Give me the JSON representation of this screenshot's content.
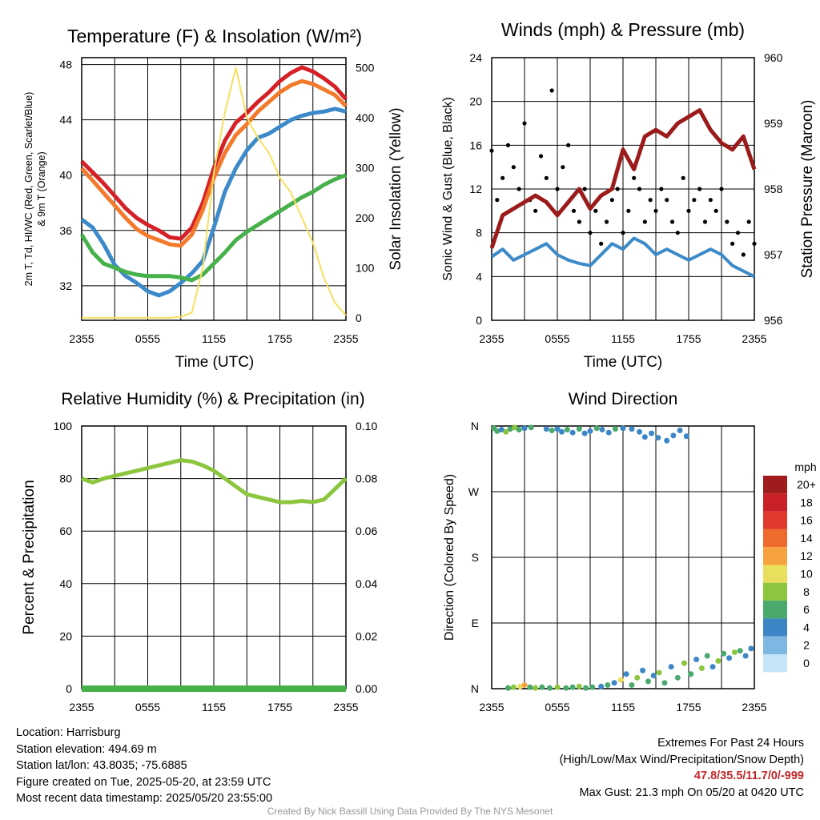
{
  "panels": {
    "temp": {
      "title": "Temperature (F) & Insolation (W/m²)",
      "ylabel_line1": "2m T, Td, HI/WC (Red, Green, Scarlet/Blue)",
      "ylabel_line2": "& 9m T (Orange)",
      "ylabel_right": "Solar Insolation (Yellow)",
      "xlabel": "Time (UTC)"
    },
    "wind": {
      "title": "Winds (mph) & Pressure (mb)",
      "ylabel": "Sonic Wind & Gust (Blue, Black)",
      "ylabel_right": "Station Pressure (Maroon)",
      "xlabel": "Time (UTC)"
    },
    "rh": {
      "title": "Relative Humidity (%) & Precipitation (in)",
      "ylabel": "Percent & Precipitation"
    },
    "dir": {
      "title": "Wind Direction",
      "ylabel": "Direction (Colored By Speed)",
      "colorbar_title": "mph",
      "colorbar_labels": [
        "20+",
        "18",
        "16",
        "14",
        "12",
        "10",
        "8",
        "6",
        "4",
        "2",
        "0"
      ],
      "colorbar_colors": [
        "#a01c1c",
        "#c92126",
        "#e03a2c",
        "#ef6a2d",
        "#f6a23f",
        "#e8df5c",
        "#8cc63f",
        "#4aa96c",
        "#3d86c6",
        "#7fb7e3",
        "#c4e4f7"
      ]
    }
  },
  "x_ticks": [
    "2355",
    "0555",
    "1155",
    "1755",
    "2355"
  ],
  "chart_data": [
    {
      "type": "line",
      "id": "temp",
      "x_ticks": [
        "2355",
        "0555",
        "1155",
        "1755",
        "2355"
      ],
      "ylim": [
        29.5,
        48.5
      ],
      "yticks": [
        32,
        36,
        40,
        44,
        48
      ],
      "y2lim": [
        -5,
        520
      ],
      "y2ticks": [
        0,
        100,
        200,
        300,
        400,
        500
      ],
      "grid": true,
      "series": [
        {
          "name": "2m T",
          "color": "#d42026",
          "axis": "left",
          "x": [
            0,
            1,
            2,
            3,
            4,
            5,
            6,
            7,
            8,
            9,
            10,
            11,
            12,
            13,
            14,
            15,
            16,
            17,
            18,
            19,
            20,
            21,
            22,
            23,
            24
          ],
          "values": [
            41.0,
            40.2,
            39.4,
            38.5,
            37.6,
            36.9,
            36.4,
            36.0,
            35.5,
            35.4,
            36.2,
            38.0,
            40.5,
            42.5,
            43.8,
            44.5,
            45.3,
            46.0,
            46.8,
            47.4,
            47.8,
            47.5,
            47.0,
            46.4,
            45.5
          ]
        },
        {
          "name": "9m T",
          "color": "#f47a2b",
          "axis": "left",
          "x": [
            0,
            1,
            2,
            3,
            4,
            5,
            6,
            7,
            8,
            9,
            10,
            11,
            12,
            13,
            14,
            15,
            16,
            17,
            18,
            19,
            20,
            21,
            22,
            23,
            24
          ],
          "values": [
            40.5,
            39.6,
            38.7,
            37.8,
            36.9,
            36.1,
            35.6,
            35.3,
            35.0,
            34.9,
            35.7,
            37.5,
            39.8,
            41.6,
            42.9,
            43.7,
            44.6,
            45.3,
            46.0,
            46.5,
            46.8,
            46.6,
            46.2,
            45.8,
            45.0
          ]
        },
        {
          "name": "HI/WC",
          "color": "#3c8ac9",
          "axis": "left",
          "x": [
            0,
            1,
            2,
            3,
            4,
            5,
            6,
            7,
            8,
            9,
            10,
            11,
            12,
            13,
            14,
            15,
            16,
            17,
            18,
            19,
            20,
            21,
            22,
            23,
            24
          ],
          "values": [
            36.8,
            36.2,
            35.0,
            33.5,
            32.7,
            32.2,
            31.6,
            31.3,
            31.6,
            32.2,
            32.9,
            33.8,
            36.2,
            38.8,
            40.5,
            41.8,
            42.7,
            43.0,
            43.5,
            44.0,
            44.3,
            44.5,
            44.6,
            44.8,
            44.6
          ]
        },
        {
          "name": "Td",
          "color": "#46b04a",
          "axis": "left",
          "x": [
            0,
            1,
            2,
            3,
            4,
            5,
            6,
            7,
            8,
            9,
            10,
            11,
            12,
            13,
            14,
            15,
            16,
            17,
            18,
            19,
            20,
            21,
            22,
            23,
            24
          ],
          "values": [
            35.7,
            34.4,
            33.6,
            33.3,
            33.0,
            32.8,
            32.7,
            32.7,
            32.7,
            32.6,
            32.4,
            32.8,
            33.6,
            34.4,
            35.3,
            35.9,
            36.4,
            36.9,
            37.4,
            37.9,
            38.4,
            38.8,
            39.3,
            39.7,
            40.0
          ]
        },
        {
          "name": "Solar",
          "color": "#f6e061",
          "axis": "right",
          "x": [
            0,
            1,
            2,
            3,
            4,
            5,
            6,
            7,
            8,
            9,
            10,
            11,
            12,
            13,
            14,
            15,
            16,
            17,
            18,
            19,
            20,
            21,
            22,
            23,
            24
          ],
          "values": [
            0,
            0,
            0,
            0,
            0,
            0,
            0,
            0,
            0,
            2,
            10,
            100,
            290,
            410,
            500,
            400,
            360,
            330,
            280,
            250,
            200,
            150,
            80,
            30,
            5
          ]
        }
      ]
    },
    {
      "type": "line",
      "id": "wind",
      "x_ticks": [
        "2355",
        "0555",
        "1155",
        "1755",
        "2355"
      ],
      "ylim": [
        0,
        24
      ],
      "yticks": [
        0,
        4,
        8,
        12,
        16,
        20,
        24
      ],
      "y2lim": [
        956,
        960
      ],
      "y2ticks": [
        956,
        957,
        958,
        959,
        960
      ],
      "grid": true,
      "series": [
        {
          "name": "Sonic Wind",
          "color": "#3c8ac9",
          "axis": "left",
          "x": [
            0,
            1,
            2,
            3,
            4,
            5,
            6,
            7,
            8,
            9,
            10,
            11,
            12,
            13,
            14,
            15,
            16,
            17,
            18,
            19,
            20,
            21,
            22,
            23,
            24
          ],
          "values": [
            5.8,
            6.5,
            5.5,
            6.0,
            6.5,
            7.0,
            6.0,
            5.5,
            5.2,
            5.0,
            6.0,
            7.0,
            6.5,
            7.5,
            7.0,
            6.0,
            6.5,
            6.0,
            5.5,
            6.0,
            6.5,
            6.0,
            5.0,
            4.5,
            4.0
          ]
        },
        {
          "name": "Gust",
          "color": "#000000",
          "axis": "left",
          "x": [
            0,
            0.5,
            1,
            1.5,
            2,
            2.5,
            3,
            3.5,
            4,
            4.5,
            5,
            5.5,
            6,
            6.5,
            7,
            7.5,
            8,
            8.5,
            9,
            9.5,
            10,
            10.5,
            11,
            11.5,
            12,
            12.5,
            13,
            13.5,
            14,
            14.5,
            15,
            15.5,
            16,
            16.5,
            17,
            17.5,
            18,
            18.5,
            19,
            19.5,
            20,
            20.5,
            21,
            21.5,
            22,
            22.5,
            23,
            23.5,
            24
          ],
          "values": [
            15.5,
            11,
            13,
            16,
            14,
            12,
            18,
            11,
            10,
            15,
            13,
            21,
            12,
            14,
            16,
            10,
            9,
            12,
            8,
            10,
            7,
            9,
            11,
            12,
            8,
            10,
            13,
            12,
            9,
            11,
            10,
            12,
            11,
            9,
            8,
            13,
            10,
            11,
            12,
            9,
            11,
            10,
            12,
            9,
            7,
            8,
            6,
            9,
            7
          ]
        },
        {
          "name": "Pressure",
          "color": "#9b1b1b",
          "axis": "right",
          "x": [
            0,
            1,
            2,
            3,
            4,
            5,
            6,
            7,
            8,
            9,
            10,
            11,
            12,
            13,
            14,
            15,
            16,
            17,
            18,
            19,
            20,
            21,
            22,
            23,
            24
          ],
          "values": [
            957.1,
            957.6,
            957.7,
            957.8,
            957.9,
            957.8,
            957.6,
            957.8,
            958.0,
            957.7,
            957.9,
            958.0,
            958.6,
            958.3,
            958.8,
            958.9,
            958.8,
            959.0,
            959.1,
            959.2,
            958.9,
            958.7,
            958.6,
            958.8,
            958.3
          ]
        }
      ]
    },
    {
      "type": "line",
      "id": "rh",
      "x_ticks": [
        "2355",
        "0555",
        "1155",
        "1755",
        "2355"
      ],
      "ylim": [
        0,
        100
      ],
      "yticks": [
        0,
        20,
        40,
        60,
        80,
        100
      ],
      "y2lim": [
        0,
        0.1
      ],
      "y2ticks": [
        "0.00",
        "0.02",
        "0.04",
        "0.06",
        "0.08",
        "0.10"
      ],
      "grid": true,
      "series": [
        {
          "name": "RH",
          "color": "#8cc63f",
          "axis": "left",
          "x": [
            0,
            1,
            2,
            3,
            4,
            5,
            6,
            7,
            8,
            9,
            10,
            11,
            12,
            13,
            14,
            15,
            16,
            17,
            18,
            19,
            20,
            21,
            22,
            23,
            24
          ],
          "values": [
            80,
            78.5,
            80,
            81,
            82,
            83,
            84,
            85,
            86,
            87,
            86.5,
            85,
            83,
            80,
            77,
            74,
            73,
            72,
            71,
            71,
            71.5,
            71,
            72,
            76,
            80
          ]
        },
        {
          "name": "Precip",
          "color": "#46b04a",
          "axis": "right",
          "x": [
            0,
            24
          ],
          "values": [
            0,
            0
          ]
        }
      ]
    },
    {
      "type": "scatter",
      "id": "dir",
      "x_ticks": [
        "2355",
        "0555",
        "1155",
        "1755",
        "2355"
      ],
      "ylim": [
        0,
        360
      ],
      "yticks": [
        "N",
        "E",
        "S",
        "W",
        "N"
      ],
      "grid": true,
      "points_north_high": [
        [
          0.2,
          357,
          6
        ],
        [
          0.5,
          353,
          6
        ],
        [
          0.9,
          355,
          4
        ],
        [
          1.3,
          352,
          8
        ],
        [
          1.7,
          356,
          6
        ],
        [
          2.1,
          358,
          8
        ],
        [
          2.5,
          355,
          6
        ],
        [
          3.0,
          357,
          4
        ],
        [
          3.6,
          358,
          6
        ],
        [
          5.0,
          356,
          4
        ],
        [
          5.5,
          354,
          6
        ],
        [
          6.0,
          356,
          4
        ],
        [
          6.4,
          352,
          4
        ],
        [
          6.9,
          355,
          6
        ],
        [
          7.4,
          351,
          4
        ],
        [
          8.0,
          356,
          6
        ],
        [
          8.5,
          350,
          4
        ],
        [
          9.0,
          353,
          4
        ],
        [
          9.6,
          357,
          6
        ],
        [
          10.1,
          355,
          4
        ],
        [
          10.7,
          351,
          4
        ],
        [
          11.3,
          356,
          6
        ],
        [
          12.0,
          357,
          4
        ],
        [
          12.8,
          356,
          4
        ],
        [
          13.5,
          352,
          4
        ],
        [
          14.0,
          345,
          4
        ],
        [
          14.6,
          350,
          4
        ],
        [
          15.2,
          344,
          4
        ],
        [
          16.0,
          340,
          4
        ],
        [
          16.6,
          347,
          4
        ],
        [
          17.2,
          354,
          4
        ],
        [
          17.8,
          346,
          4
        ]
      ],
      "points_north_low": [
        [
          1.5,
          1,
          6
        ],
        [
          2.0,
          2,
          8
        ],
        [
          2.6,
          3,
          10
        ],
        [
          3.0,
          5,
          12
        ],
        [
          3.5,
          2,
          6
        ],
        [
          4.0,
          1,
          8
        ],
        [
          4.6,
          2,
          6
        ],
        [
          5.3,
          1,
          6
        ],
        [
          6.0,
          2,
          8
        ],
        [
          6.8,
          1,
          6
        ],
        [
          7.4,
          2,
          6
        ],
        [
          8.0,
          3,
          8
        ],
        [
          8.6,
          1,
          6
        ],
        [
          9.2,
          2,
          6
        ],
        [
          10.0,
          3,
          4
        ],
        [
          10.6,
          5,
          6
        ],
        [
          11.2,
          8,
          4
        ],
        [
          11.8,
          12,
          10
        ],
        [
          12.3,
          20,
          4
        ],
        [
          12.8,
          5,
          6
        ],
        [
          13.3,
          15,
          8
        ],
        [
          13.8,
          25,
          4
        ],
        [
          14.3,
          10,
          6
        ],
        [
          14.8,
          18,
          4
        ],
        [
          15.3,
          22,
          8
        ],
        [
          15.8,
          8,
          6
        ],
        [
          16.4,
          30,
          4
        ],
        [
          17.0,
          15,
          6
        ],
        [
          17.6,
          35,
          8
        ],
        [
          18.2,
          20,
          6
        ],
        [
          18.7,
          40,
          4
        ],
        [
          19.2,
          28,
          8
        ],
        [
          19.7,
          45,
          6
        ],
        [
          20.2,
          30,
          4
        ],
        [
          20.7,
          38,
          8
        ],
        [
          21.2,
          48,
          6
        ],
        [
          21.7,
          42,
          4
        ],
        [
          22.2,
          50,
          8
        ],
        [
          22.7,
          52,
          6
        ],
        [
          23.2,
          45,
          4
        ],
        [
          23.7,
          55,
          4
        ]
      ]
    }
  ],
  "info_left": [
    "Location: Harrisburg",
    "Station elevation: 494.69 m",
    "Station lat/lon: 43.8035; -75.6885",
    "Figure created on Tue, 2025-05-20, at 23:59 UTC",
    "Most recent data timestamp: 2025/05/20 23:55:00"
  ],
  "extremes": {
    "title": "Extremes For Past 24 Hours",
    "subtitle": "(High/Low/Max Wind/Precipitation/Snow Depth)",
    "values": "47.8/35.5/11.7/0/-999",
    "max_gust": "Max Gust: 21.3 mph On 05/20 at 0420 UTC"
  },
  "credit": "Created By Nick Bassill Using Data Provided By The NYS Mesonet"
}
